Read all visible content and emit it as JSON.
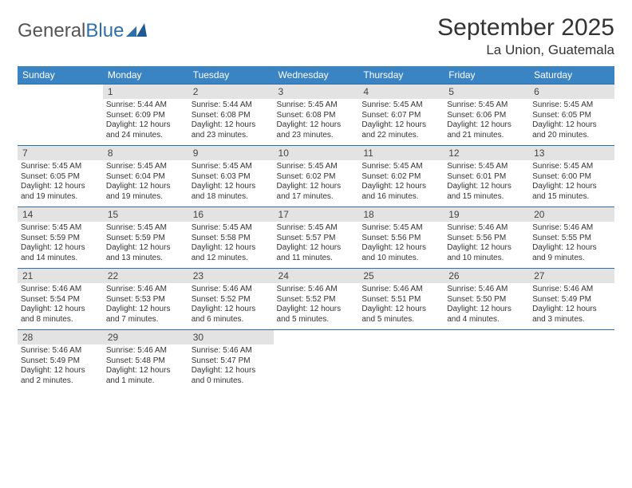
{
  "logo": {
    "part1": "General",
    "part2": "Blue"
  },
  "title": {
    "month": "September 2025",
    "location": "La Union, Guatemala"
  },
  "colors": {
    "header_bg": "#3a84c4",
    "header_text": "#ffffff",
    "daynum_bg": "#e3e3e3",
    "rule": "#2f6fa8",
    "text": "#333333",
    "page_bg": "#ffffff"
  },
  "weekdays": [
    "Sunday",
    "Monday",
    "Tuesday",
    "Wednesday",
    "Thursday",
    "Friday",
    "Saturday"
  ],
  "weeks": [
    [
      null,
      {
        "n": "1",
        "sr": "Sunrise: 5:44 AM",
        "ss": "Sunset: 6:09 PM",
        "d1": "Daylight: 12 hours",
        "d2": "and 24 minutes."
      },
      {
        "n": "2",
        "sr": "Sunrise: 5:44 AM",
        "ss": "Sunset: 6:08 PM",
        "d1": "Daylight: 12 hours",
        "d2": "and 23 minutes."
      },
      {
        "n": "3",
        "sr": "Sunrise: 5:45 AM",
        "ss": "Sunset: 6:08 PM",
        "d1": "Daylight: 12 hours",
        "d2": "and 23 minutes."
      },
      {
        "n": "4",
        "sr": "Sunrise: 5:45 AM",
        "ss": "Sunset: 6:07 PM",
        "d1": "Daylight: 12 hours",
        "d2": "and 22 minutes."
      },
      {
        "n": "5",
        "sr": "Sunrise: 5:45 AM",
        "ss": "Sunset: 6:06 PM",
        "d1": "Daylight: 12 hours",
        "d2": "and 21 minutes."
      },
      {
        "n": "6",
        "sr": "Sunrise: 5:45 AM",
        "ss": "Sunset: 6:05 PM",
        "d1": "Daylight: 12 hours",
        "d2": "and 20 minutes."
      }
    ],
    [
      {
        "n": "7",
        "sr": "Sunrise: 5:45 AM",
        "ss": "Sunset: 6:05 PM",
        "d1": "Daylight: 12 hours",
        "d2": "and 19 minutes."
      },
      {
        "n": "8",
        "sr": "Sunrise: 5:45 AM",
        "ss": "Sunset: 6:04 PM",
        "d1": "Daylight: 12 hours",
        "d2": "and 19 minutes."
      },
      {
        "n": "9",
        "sr": "Sunrise: 5:45 AM",
        "ss": "Sunset: 6:03 PM",
        "d1": "Daylight: 12 hours",
        "d2": "and 18 minutes."
      },
      {
        "n": "10",
        "sr": "Sunrise: 5:45 AM",
        "ss": "Sunset: 6:02 PM",
        "d1": "Daylight: 12 hours",
        "d2": "and 17 minutes."
      },
      {
        "n": "11",
        "sr": "Sunrise: 5:45 AM",
        "ss": "Sunset: 6:02 PM",
        "d1": "Daylight: 12 hours",
        "d2": "and 16 minutes."
      },
      {
        "n": "12",
        "sr": "Sunrise: 5:45 AM",
        "ss": "Sunset: 6:01 PM",
        "d1": "Daylight: 12 hours",
        "d2": "and 15 minutes."
      },
      {
        "n": "13",
        "sr": "Sunrise: 5:45 AM",
        "ss": "Sunset: 6:00 PM",
        "d1": "Daylight: 12 hours",
        "d2": "and 15 minutes."
      }
    ],
    [
      {
        "n": "14",
        "sr": "Sunrise: 5:45 AM",
        "ss": "Sunset: 5:59 PM",
        "d1": "Daylight: 12 hours",
        "d2": "and 14 minutes."
      },
      {
        "n": "15",
        "sr": "Sunrise: 5:45 AM",
        "ss": "Sunset: 5:59 PM",
        "d1": "Daylight: 12 hours",
        "d2": "and 13 minutes."
      },
      {
        "n": "16",
        "sr": "Sunrise: 5:45 AM",
        "ss": "Sunset: 5:58 PM",
        "d1": "Daylight: 12 hours",
        "d2": "and 12 minutes."
      },
      {
        "n": "17",
        "sr": "Sunrise: 5:45 AM",
        "ss": "Sunset: 5:57 PM",
        "d1": "Daylight: 12 hours",
        "d2": "and 11 minutes."
      },
      {
        "n": "18",
        "sr": "Sunrise: 5:45 AM",
        "ss": "Sunset: 5:56 PM",
        "d1": "Daylight: 12 hours",
        "d2": "and 10 minutes."
      },
      {
        "n": "19",
        "sr": "Sunrise: 5:46 AM",
        "ss": "Sunset: 5:56 PM",
        "d1": "Daylight: 12 hours",
        "d2": "and 10 minutes."
      },
      {
        "n": "20",
        "sr": "Sunrise: 5:46 AM",
        "ss": "Sunset: 5:55 PM",
        "d1": "Daylight: 12 hours",
        "d2": "and 9 minutes."
      }
    ],
    [
      {
        "n": "21",
        "sr": "Sunrise: 5:46 AM",
        "ss": "Sunset: 5:54 PM",
        "d1": "Daylight: 12 hours",
        "d2": "and 8 minutes."
      },
      {
        "n": "22",
        "sr": "Sunrise: 5:46 AM",
        "ss": "Sunset: 5:53 PM",
        "d1": "Daylight: 12 hours",
        "d2": "and 7 minutes."
      },
      {
        "n": "23",
        "sr": "Sunrise: 5:46 AM",
        "ss": "Sunset: 5:52 PM",
        "d1": "Daylight: 12 hours",
        "d2": "and 6 minutes."
      },
      {
        "n": "24",
        "sr": "Sunrise: 5:46 AM",
        "ss": "Sunset: 5:52 PM",
        "d1": "Daylight: 12 hours",
        "d2": "and 5 minutes."
      },
      {
        "n": "25",
        "sr": "Sunrise: 5:46 AM",
        "ss": "Sunset: 5:51 PM",
        "d1": "Daylight: 12 hours",
        "d2": "and 5 minutes."
      },
      {
        "n": "26",
        "sr": "Sunrise: 5:46 AM",
        "ss": "Sunset: 5:50 PM",
        "d1": "Daylight: 12 hours",
        "d2": "and 4 minutes."
      },
      {
        "n": "27",
        "sr": "Sunrise: 5:46 AM",
        "ss": "Sunset: 5:49 PM",
        "d1": "Daylight: 12 hours",
        "d2": "and 3 minutes."
      }
    ],
    [
      {
        "n": "28",
        "sr": "Sunrise: 5:46 AM",
        "ss": "Sunset: 5:49 PM",
        "d1": "Daylight: 12 hours",
        "d2": "and 2 minutes."
      },
      {
        "n": "29",
        "sr": "Sunrise: 5:46 AM",
        "ss": "Sunset: 5:48 PM",
        "d1": "Daylight: 12 hours",
        "d2": "and 1 minute."
      },
      {
        "n": "30",
        "sr": "Sunrise: 5:46 AM",
        "ss": "Sunset: 5:47 PM",
        "d1": "Daylight: 12 hours",
        "d2": "and 0 minutes."
      },
      null,
      null,
      null,
      null
    ]
  ]
}
